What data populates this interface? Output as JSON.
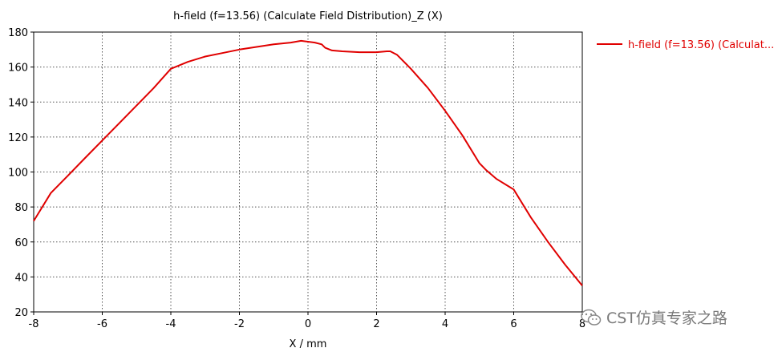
{
  "chart_data": {
    "type": "line",
    "title": "h-field (f=13.56) (Calculate Field Distribution)_Z (X)",
    "xlabel": "X / mm",
    "ylabel": "",
    "xlim": [
      -8,
      8
    ],
    "ylim": [
      20,
      180
    ],
    "xticks": [
      -8,
      -6,
      -4,
      -2,
      0,
      2,
      4,
      6,
      8
    ],
    "yticks": [
      20,
      40,
      60,
      80,
      100,
      120,
      140,
      160,
      180
    ],
    "grid": true,
    "legend_position": "right",
    "series": [
      {
        "name": "h-field (f=13.56) (Calculat...",
        "color": "#e00000",
        "x": [
          -8,
          -7.5,
          -7,
          -6.5,
          -6,
          -5.5,
          -5,
          -4.5,
          -4,
          -3.5,
          -3,
          -2.5,
          -2,
          -1.5,
          -1,
          -0.5,
          -0.2,
          0,
          0.2,
          0.4,
          0.5,
          0.7,
          1,
          1.5,
          2,
          2.3,
          2.4,
          2.6,
          3,
          3.5,
          4,
          4.5,
          5,
          5.2,
          5.5,
          6,
          6.5,
          7,
          7.5,
          8
        ],
        "y": [
          72,
          88,
          98,
          108,
          118,
          128,
          138,
          148,
          159,
          163,
          166,
          168,
          170,
          171.5,
          173,
          174,
          175,
          174.5,
          174,
          173,
          171,
          169.5,
          169,
          168.5,
          168.5,
          169,
          169,
          167,
          159,
          148,
          135,
          121,
          105,
          101,
          96,
          90,
          74,
          60,
          47,
          35
        ]
      }
    ]
  },
  "watermark": {
    "text": "CST仿真专家之路",
    "icon": "wechat-icon"
  }
}
